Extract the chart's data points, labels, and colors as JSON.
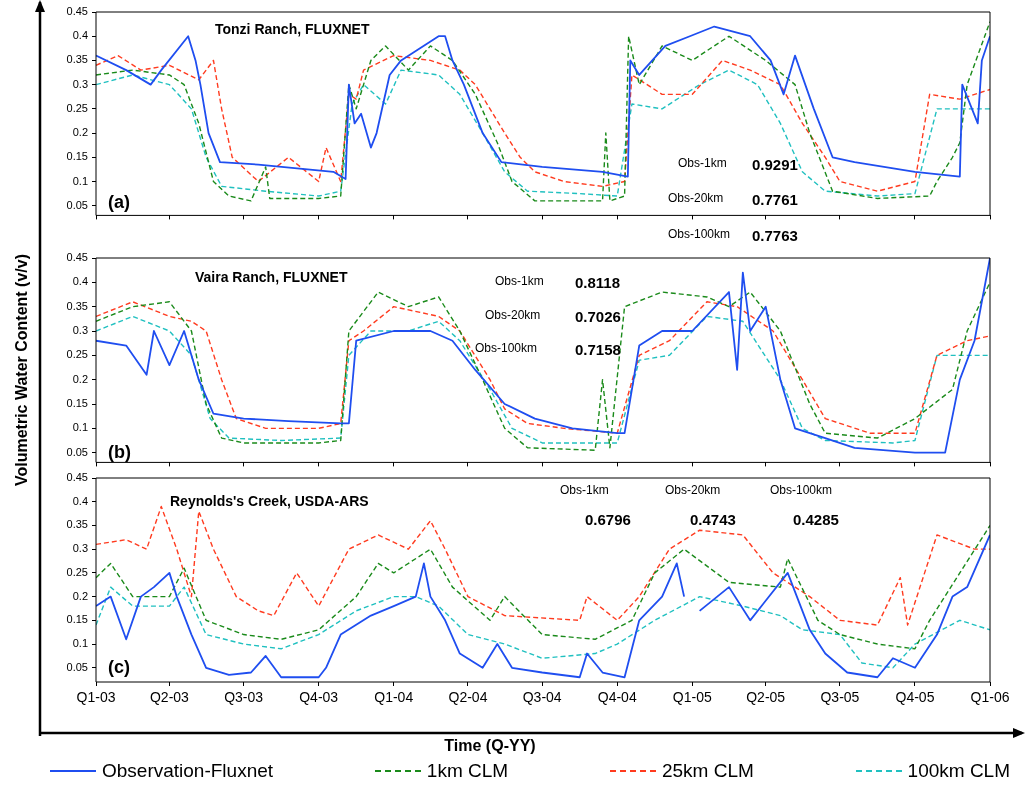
{
  "chart_data": [
    {
      "type": "line",
      "ylabel": "Volumetric Water Content (v/v)",
      "xlim": [
        "2003-01-01",
        "2006-01-01"
      ],
      "ylim": [
        0.03,
        0.45
      ],
      "yticks": [
        0.05,
        0.1,
        0.15,
        0.2,
        0.25,
        0.3,
        0.35,
        0.4,
        0.45
      ],
      "xticks": [
        {
          "value": "2003-01-01",
          "label": null
        },
        {
          "value": "2003-04-01",
          "label": null
        },
        {
          "value": "2003-07-01",
          "label": null
        },
        {
          "value": "2003-10-01",
          "label": null
        },
        {
          "value": "2004-01-01",
          "label": null
        },
        {
          "value": "2004-04-01",
          "label": null
        },
        {
          "value": "2004-07-01",
          "label": null
        },
        {
          "value": "2004-10-01",
          "label": null
        },
        {
          "value": "2005-01-01",
          "label": null
        },
        {
          "value": "2005-04-01",
          "label": null
        },
        {
          "value": "2005-07-01",
          "label": null
        },
        {
          "value": "2005-10-01",
          "label": null
        },
        {
          "value": "2006-01-01",
          "label": null
        }
      ],
      "tick_labels": "y",
      "grid": false,
      "marker": "none",
      "annotations": [
        "Tonzi Ranch, FLUXNET",
        "(a)",
        "Obs-1km",
        "0.9291",
        "Obs-20km",
        "0.7761",
        "Obs-100km",
        "0.7763"
      ],
      "series": [
        {
          "color": "#1f4ef0",
          "line_style": "solid",
          "x": [
            "2003-01-01",
            "2003-02-07",
            "2003-03-09",
            "2003-03-22",
            "2003-04-24",
            "2003-05-03",
            "2003-05-09",
            "2003-05-19",
            "2003-06-02",
            "2003-07-19",
            "2003-10-19",
            "2003-11-03",
            "2003-11-07",
            "2003-11-14",
            "2003-11-22",
            "2003-12-04",
            "2003-12-11",
            "2003-12-27",
            "2004-01-10",
            "2004-02-25",
            "2004-03-04",
            "2004-03-13",
            "2004-03-27",
            "2004-04-19",
            "2004-05-12",
            "2004-07-01",
            "2004-09-13",
            "2004-10-14",
            "2004-10-17",
            "2004-10-28",
            "2004-11-29",
            "2004-12-29",
            "2005-01-28",
            "2005-03-13",
            "2005-04-07",
            "2005-04-23",
            "2005-05-07",
            "2005-05-30",
            "2005-06-22",
            "2005-07-19",
            "2005-10-01",
            "2005-11-25",
            "2005-11-28",
            "2005-12-17",
            "2005-12-22",
            "2006-01-01"
          ],
          "values": [
            0.36,
            0.33,
            0.3,
            0.33,
            0.4,
            0.35,
            0.3,
            0.2,
            0.14,
            0.135,
            0.12,
            0.105,
            0.3,
            0.22,
            0.24,
            0.17,
            0.2,
            0.32,
            0.35,
            0.4,
            0.4,
            0.35,
            0.3,
            0.2,
            0.14,
            0.13,
            0.12,
            0.11,
            0.35,
            0.32,
            0.38,
            0.4,
            0.42,
            0.4,
            0.35,
            0.28,
            0.36,
            0.25,
            0.15,
            0.14,
            0.12,
            0.11,
            0.3,
            0.22,
            0.35,
            0.4
          ]
        },
        {
          "color": "#1a8a1a",
          "line_style": "dashed",
          "x": [
            "2003-01-01",
            "2003-02-15",
            "2003-04-01",
            "2003-04-19",
            "2003-05-07",
            "2003-05-25",
            "2003-06-13",
            "2003-07-10",
            "2003-07-28",
            "2003-08-02",
            "2003-10-01",
            "2003-10-28",
            "2003-11-07",
            "2003-11-16",
            "2003-12-04",
            "2003-12-22",
            "2004-01-19",
            "2004-02-15",
            "2004-03-13",
            "2004-04-10",
            "2004-05-07",
            "2004-05-25",
            "2004-06-22",
            "2004-09-13",
            "2004-09-17",
            "2004-09-22",
            "2004-10-10",
            "2004-10-15",
            "2004-10-28",
            "2004-11-25",
            "2005-01-01",
            "2005-02-15",
            "2005-04-01",
            "2005-05-07",
            "2005-05-25",
            "2005-06-22",
            "2005-08-16",
            "2005-10-19",
            "2005-10-28",
            "2005-11-16",
            "2005-11-25",
            "2005-12-04",
            "2006-01-01"
          ],
          "values": [
            0.32,
            0.33,
            0.32,
            0.3,
            0.22,
            0.1,
            0.07,
            0.06,
            0.13,
            0.065,
            0.065,
            0.07,
            0.3,
            0.25,
            0.35,
            0.38,
            0.33,
            0.38,
            0.35,
            0.28,
            0.18,
            0.1,
            0.06,
            0.06,
            0.2,
            0.06,
            0.07,
            0.4,
            0.3,
            0.38,
            0.35,
            0.4,
            0.35,
            0.3,
            0.2,
            0.08,
            0.065,
            0.07,
            0.1,
            0.15,
            0.18,
            0.3,
            0.43
          ]
        },
        {
          "color": "#ff3b1f",
          "line_style": "dashed",
          "x": [
            "2003-01-01",
            "2003-01-28",
            "2003-02-25",
            "2003-04-01",
            "2003-05-07",
            "2003-05-25",
            "2003-06-04",
            "2003-06-17",
            "2003-07-19",
            "2003-08-25",
            "2003-10-01",
            "2003-10-10",
            "2003-10-28",
            "2003-11-07",
            "2003-11-16",
            "2003-11-25",
            "2004-01-01",
            "2004-02-15",
            "2004-03-22",
            "2004-04-10",
            "2004-04-28",
            "2004-05-16",
            "2004-06-04",
            "2004-06-22",
            "2004-07-28",
            "2004-09-13",
            "2004-10-10",
            "2004-10-19",
            "2004-11-25",
            "2005-01-01",
            "2005-02-07",
            "2005-03-13",
            "2005-04-19",
            "2005-05-16",
            "2005-06-13",
            "2005-07-01",
            "2005-08-16",
            "2005-10-01",
            "2005-10-19",
            "2005-11-25",
            "2006-01-01"
          ],
          "values": [
            0.34,
            0.36,
            0.33,
            0.34,
            0.31,
            0.35,
            0.25,
            0.15,
            0.1,
            0.15,
            0.1,
            0.17,
            0.1,
            0.28,
            0.27,
            0.33,
            0.36,
            0.35,
            0.33,
            0.3,
            0.25,
            0.2,
            0.15,
            0.12,
            0.1,
            0.09,
            0.1,
            0.32,
            0.28,
            0.28,
            0.35,
            0.33,
            0.3,
            0.22,
            0.15,
            0.1,
            0.08,
            0.1,
            0.28,
            0.27,
            0.29
          ]
        },
        {
          "color": "#20c0c0",
          "line_style": "dashed",
          "x": [
            "2003-01-01",
            "2003-02-15",
            "2003-04-01",
            "2003-04-28",
            "2003-05-16",
            "2003-06-04",
            "2003-07-28",
            "2003-10-01",
            "2003-10-28",
            "2003-11-11",
            "2003-11-25",
            "2003-12-22",
            "2004-01-10",
            "2004-02-25",
            "2004-03-22",
            "2004-04-19",
            "2004-05-16",
            "2004-06-13",
            "2004-08-16",
            "2004-10-01",
            "2004-10-19",
            "2004-11-25",
            "2005-01-10",
            "2005-02-15",
            "2005-03-22",
            "2005-04-19",
            "2005-05-16",
            "2005-06-13",
            "2005-08-16",
            "2005-10-01",
            "2005-10-28",
            "2005-12-04",
            "2006-01-01"
          ],
          "values": [
            0.3,
            0.32,
            0.3,
            0.25,
            0.15,
            0.09,
            0.08,
            0.07,
            0.08,
            0.26,
            0.3,
            0.26,
            0.33,
            0.32,
            0.28,
            0.2,
            0.12,
            0.08,
            0.075,
            0.07,
            0.26,
            0.25,
            0.3,
            0.33,
            0.3,
            0.22,
            0.12,
            0.08,
            0.07,
            0.075,
            0.25,
            0.25,
            0.25
          ]
        }
      ]
    },
    {
      "type": "line",
      "xlim": [
        "2003-01-01",
        "2006-01-01"
      ],
      "ylim": [
        0.03,
        0.45
      ],
      "yticks": [
        0.05,
        0.1,
        0.15,
        0.2,
        0.25,
        0.3,
        0.35,
        0.4,
        0.45
      ],
      "xticks": [
        {
          "value": "2003-01-01",
          "label": null
        },
        {
          "value": "2003-04-01",
          "label": null
        },
        {
          "value": "2003-07-01",
          "label": null
        },
        {
          "value": "2003-10-01",
          "label": null
        },
        {
          "value": "2004-01-01",
          "label": null
        },
        {
          "value": "2004-04-01",
          "label": null
        },
        {
          "value": "2004-07-01",
          "label": null
        },
        {
          "value": "2004-10-01",
          "label": null
        },
        {
          "value": "2005-01-01",
          "label": null
        },
        {
          "value": "2005-04-01",
          "label": null
        },
        {
          "value": "2005-07-01",
          "label": null
        },
        {
          "value": "2005-10-01",
          "label": null
        },
        {
          "value": "2006-01-01",
          "label": null
        }
      ],
      "tick_labels": "y",
      "grid": false,
      "marker": "none",
      "annotations": [
        "Vaira Ranch, FLUXNET",
        "(b)",
        "Obs-1km",
        "0.8118",
        "Obs-20km",
        "0.7026",
        "Obs-100km",
        "0.7158"
      ],
      "series": [
        {
          "color": "#1f4ef0",
          "line_style": "solid",
          "x": [
            "2003-01-01",
            "2003-02-07",
            "2003-03-04",
            "2003-03-13",
            "2003-04-01",
            "2003-04-19",
            "2003-05-07",
            "2003-05-25",
            "2003-07-01",
            "2003-08-25",
            "2003-10-28",
            "2003-11-07",
            "2003-11-16",
            "2004-01-01",
            "2004-02-15",
            "2004-03-13",
            "2004-04-10",
            "2004-05-16",
            "2004-06-22",
            "2004-08-07",
            "2004-10-01",
            "2004-10-10",
            "2004-10-28",
            "2004-11-25",
            "2005-01-01",
            "2005-02-15",
            "2005-02-25",
            "2005-03-04",
            "2005-03-13",
            "2005-04-01",
            "2005-04-19",
            "2005-05-07",
            "2005-06-13",
            "2005-07-19",
            "2005-10-01",
            "2005-11-07",
            "2005-11-25",
            "2005-12-13",
            "2006-01-01"
          ],
          "values": [
            0.28,
            0.27,
            0.21,
            0.3,
            0.23,
            0.3,
            0.2,
            0.13,
            0.12,
            0.115,
            0.11,
            0.11,
            0.28,
            0.3,
            0.3,
            0.28,
            0.22,
            0.15,
            0.12,
            0.1,
            0.09,
            0.09,
            0.27,
            0.3,
            0.3,
            0.38,
            0.22,
            0.42,
            0.3,
            0.35,
            0.2,
            0.1,
            0.08,
            0.06,
            0.05,
            0.05,
            0.2,
            0.28,
            0.45
          ]
        },
        {
          "color": "#1a8a1a",
          "line_style": "dashed",
          "x": [
            "2003-01-01",
            "2003-02-15",
            "2003-04-01",
            "2003-04-28",
            "2003-05-16",
            "2003-06-04",
            "2003-07-01",
            "2003-10-01",
            "2003-10-28",
            "2003-11-07",
            "2003-12-13",
            "2004-01-19",
            "2004-02-25",
            "2004-03-22",
            "2004-04-19",
            "2004-05-16",
            "2004-06-13",
            "2004-09-04",
            "2004-09-13",
            "2004-09-22",
            "2004-10-10",
            "2004-11-25",
            "2005-01-19",
            "2005-02-15",
            "2005-03-13",
            "2005-04-19",
            "2005-05-25",
            "2005-06-13",
            "2005-08-16",
            "2005-10-01",
            "2005-11-16",
            "2005-12-04",
            "2006-01-01"
          ],
          "values": [
            0.32,
            0.35,
            0.36,
            0.3,
            0.15,
            0.08,
            0.07,
            0.07,
            0.075,
            0.3,
            0.38,
            0.35,
            0.37,
            0.3,
            0.2,
            0.1,
            0.06,
            0.055,
            0.2,
            0.06,
            0.35,
            0.38,
            0.37,
            0.35,
            0.38,
            0.3,
            0.15,
            0.09,
            0.08,
            0.12,
            0.18,
            0.3,
            0.4
          ]
        },
        {
          "color": "#ff3b1f",
          "line_style": "dashed",
          "x": [
            "2003-01-01",
            "2003-02-15",
            "2003-04-01",
            "2003-04-28",
            "2003-05-16",
            "2003-06-04",
            "2003-06-22",
            "2003-07-28",
            "2003-10-01",
            "2003-10-28",
            "2003-11-07",
            "2003-11-25",
            "2004-01-01",
            "2004-02-25",
            "2004-03-22",
            "2004-04-28",
            "2004-05-16",
            "2004-06-13",
            "2004-07-28",
            "2004-10-01",
            "2004-10-28",
            "2004-12-04",
            "2005-01-19",
            "2005-02-25",
            "2005-04-10",
            "2005-05-16",
            "2005-06-13",
            "2005-08-07",
            "2005-10-01",
            "2005-10-28",
            "2005-12-04",
            "2006-01-01"
          ],
          "values": [
            0.33,
            0.36,
            0.33,
            0.32,
            0.3,
            0.2,
            0.12,
            0.1,
            0.1,
            0.11,
            0.28,
            0.3,
            0.35,
            0.33,
            0.3,
            0.2,
            0.14,
            0.11,
            0.1,
            0.09,
            0.25,
            0.28,
            0.36,
            0.35,
            0.3,
            0.2,
            0.12,
            0.09,
            0.09,
            0.25,
            0.28,
            0.29
          ]
        },
        {
          "color": "#20c0c0",
          "line_style": "dashed",
          "x": [
            "2003-01-01",
            "2003-02-15",
            "2003-04-01",
            "2003-04-28",
            "2003-05-21",
            "2003-06-13",
            "2003-08-16",
            "2003-10-28",
            "2003-11-07",
            "2003-12-04",
            "2004-01-19",
            "2004-02-25",
            "2004-03-22",
            "2004-04-28",
            "2004-05-25",
            "2004-07-01",
            "2004-10-01",
            "2004-10-28",
            "2004-12-04",
            "2005-01-19",
            "2005-03-04",
            "2005-04-19",
            "2005-05-16",
            "2005-06-13",
            "2005-09-04",
            "2005-10-01",
            "2005-10-28",
            "2006-01-01"
          ],
          "values": [
            0.3,
            0.33,
            0.3,
            0.25,
            0.12,
            0.08,
            0.075,
            0.08,
            0.25,
            0.3,
            0.3,
            0.32,
            0.28,
            0.18,
            0.1,
            0.07,
            0.07,
            0.24,
            0.25,
            0.33,
            0.32,
            0.2,
            0.1,
            0.075,
            0.07,
            0.075,
            0.25,
            0.25
          ]
        }
      ]
    },
    {
      "type": "line",
      "xlabel": "Time (Q-YY)",
      "legend": "bottom",
      "xlim": [
        "2003-01-01",
        "2006-01-01"
      ],
      "ylim": [
        0.02,
        0.45
      ],
      "yticks": [
        0.05,
        0.1,
        0.15,
        0.2,
        0.25,
        0.3,
        0.35,
        0.4,
        0.45
      ],
      "xticks": [
        {
          "value": "2003-01-01",
          "label": "Q1-03"
        },
        {
          "value": "2003-04-01",
          "label": "Q2-03"
        },
        {
          "value": "2003-07-01",
          "label": "Q3-03"
        },
        {
          "value": "2003-10-01",
          "label": "Q4-03"
        },
        {
          "value": "2004-01-01",
          "label": "Q1-04"
        },
        {
          "value": "2004-04-01",
          "label": "Q2-04"
        },
        {
          "value": "2004-07-01",
          "label": "Q3-04"
        },
        {
          "value": "2004-10-01",
          "label": "Q4-04"
        },
        {
          "value": "2005-01-01",
          "label": "Q1-05"
        },
        {
          "value": "2005-04-01",
          "label": "Q2-05"
        },
        {
          "value": "2005-07-01",
          "label": "Q3-05"
        },
        {
          "value": "2005-10-01",
          "label": "Q4-05"
        },
        {
          "value": "2006-01-01",
          "label": "Q1-06"
        }
      ],
      "grid": false,
      "marker": "none",
      "annotations": [
        "Reynolds's Creek, USDA-ARS",
        "(c)",
        "Obs-1km",
        "0.6796",
        "Obs-20km",
        "0.4743",
        "Obs-100km",
        "0.4285"
      ],
      "series": [
        {
          "name": "Observation-Fluxnet",
          "color": "#1f4ef0",
          "line_style": "solid",
          "x": [
            "2003-01-01",
            "2003-01-19",
            "2003-02-07",
            "2003-02-25",
            "2003-03-13",
            "2003-04-01",
            "2003-04-10",
            "2003-04-28",
            "2003-05-16",
            "2003-06-13",
            "2003-07-10",
            "2003-07-28",
            "2003-08-16",
            "2003-10-01",
            "2003-10-10",
            "2003-10-28",
            "2003-12-04",
            "2004-01-01",
            "2004-01-28",
            "2004-02-07",
            "2004-02-15",
            "2004-03-04",
            "2004-03-22",
            "2004-04-19",
            "2004-05-07",
            "2004-05-25",
            "2004-07-01",
            "2004-08-16",
            "2004-08-25",
            "2004-09-13",
            "2004-10-10",
            "2004-10-28",
            "2004-11-25",
            "2004-12-13",
            "2004-12-22",
            "2004-12-27",
            "2005-01-10",
            "2005-02-15",
            "2005-03-13",
            "2005-04-28",
            "2005-05-25",
            "2005-06-13",
            "2005-07-10",
            "2005-08-16",
            "2005-09-04",
            "2005-10-01",
            "2005-10-28",
            "2005-11-16",
            "2005-12-04",
            "2006-01-01"
          ],
          "values": [
            0.18,
            0.2,
            0.11,
            0.2,
            0.22,
            0.25,
            0.2,
            0.12,
            0.05,
            0.035,
            0.04,
            0.075,
            0.03,
            0.03,
            0.05,
            0.12,
            0.16,
            0.18,
            0.2,
            0.27,
            0.2,
            0.15,
            0.08,
            0.05,
            0.1,
            0.05,
            0.04,
            0.03,
            0.08,
            0.04,
            0.03,
            0.15,
            0.2,
            0.27,
            0.2,
            null,
            0.17,
            0.22,
            0.15,
            0.25,
            0.13,
            0.08,
            0.04,
            0.03,
            0.07,
            0.05,
            0.12,
            0.2,
            0.22,
            0.33
          ]
        },
        {
          "name": "1km CLM",
          "color": "#1a8a1a",
          "line_style": "dashed",
          "x": [
            "2003-01-01",
            "2003-01-19",
            "2003-02-15",
            "2003-04-01",
            "2003-04-19",
            "2003-05-16",
            "2003-07-01",
            "2003-08-16",
            "2003-10-01",
            "2003-11-16",
            "2003-12-13",
            "2004-01-01",
            "2004-02-15",
            "2004-03-13",
            "2004-04-28",
            "2004-05-16",
            "2004-07-01",
            "2004-09-04",
            "2004-10-19",
            "2004-11-16",
            "2004-12-22",
            "2005-02-15",
            "2005-04-19",
            "2005-04-28",
            "2005-06-04",
            "2005-07-01",
            "2005-08-16",
            "2005-10-01",
            "2005-10-19",
            "2005-11-25",
            "2006-01-01"
          ],
          "values": [
            0.24,
            0.27,
            0.2,
            0.2,
            0.26,
            0.15,
            0.12,
            0.11,
            0.13,
            0.2,
            0.27,
            0.25,
            0.3,
            0.22,
            0.15,
            0.2,
            0.12,
            0.11,
            0.15,
            0.25,
            0.3,
            0.23,
            0.22,
            0.28,
            0.15,
            0.12,
            0.1,
            0.09,
            0.15,
            0.25,
            0.35
          ]
        },
        {
          "name": "25km CLM",
          "color": "#ff3b1f",
          "line_style": "dashed",
          "x": [
            "2003-01-01",
            "2003-02-07",
            "2003-03-04",
            "2003-03-22",
            "2003-04-10",
            "2003-04-28",
            "2003-05-07",
            "2003-05-25",
            "2003-06-22",
            "2003-07-19",
            "2003-08-07",
            "2003-09-04",
            "2003-10-01",
            "2003-11-07",
            "2003-12-13",
            "2004-01-19",
            "2004-02-15",
            "2004-03-04",
            "2004-04-01",
            "2004-05-16",
            "2004-08-16",
            "2004-08-25",
            "2004-10-01",
            "2004-10-28",
            "2004-12-04",
            "2005-01-10",
            "2005-03-04",
            "2005-04-10",
            "2005-05-25",
            "2005-07-01",
            "2005-08-16",
            "2005-09-13",
            "2005-09-22",
            "2005-10-28",
            "2005-12-13",
            "2006-01-01"
          ],
          "values": [
            0.31,
            0.32,
            0.3,
            0.39,
            0.3,
            0.2,
            0.38,
            0.3,
            0.2,
            0.17,
            0.16,
            0.25,
            0.18,
            0.3,
            0.33,
            0.3,
            0.36,
            0.3,
            0.2,
            0.16,
            0.15,
            0.2,
            0.15,
            0.2,
            0.3,
            0.34,
            0.33,
            0.25,
            0.2,
            0.15,
            0.14,
            0.24,
            0.14,
            0.33,
            0.3,
            0.3
          ]
        },
        {
          "name": "100km CLM",
          "color": "#20c0c0",
          "line_style": "dashed",
          "x": [
            "2003-01-01",
            "2003-01-19",
            "2003-02-15",
            "2003-04-01",
            "2003-04-19",
            "2003-05-16",
            "2003-07-01",
            "2003-08-16",
            "2003-10-01",
            "2003-11-16",
            "2004-01-01",
            "2004-01-28",
            "2004-02-25",
            "2004-04-01",
            "2004-05-16",
            "2004-07-01",
            "2004-09-04",
            "2004-10-01",
            "2004-11-16",
            "2005-01-10",
            "2005-03-04",
            "2005-04-19",
            "2005-05-16",
            "2005-07-01",
            "2005-07-28",
            "2005-09-04",
            "2005-10-01",
            "2005-11-25",
            "2006-01-01"
          ],
          "values": [
            0.14,
            0.22,
            0.18,
            0.18,
            0.22,
            0.12,
            0.1,
            0.09,
            0.12,
            0.17,
            0.2,
            0.2,
            0.18,
            0.12,
            0.1,
            0.07,
            0.08,
            0.1,
            0.15,
            0.2,
            0.18,
            0.16,
            0.13,
            0.12,
            0.06,
            0.05,
            0.1,
            0.15,
            0.13
          ]
        }
      ]
    }
  ]
}
